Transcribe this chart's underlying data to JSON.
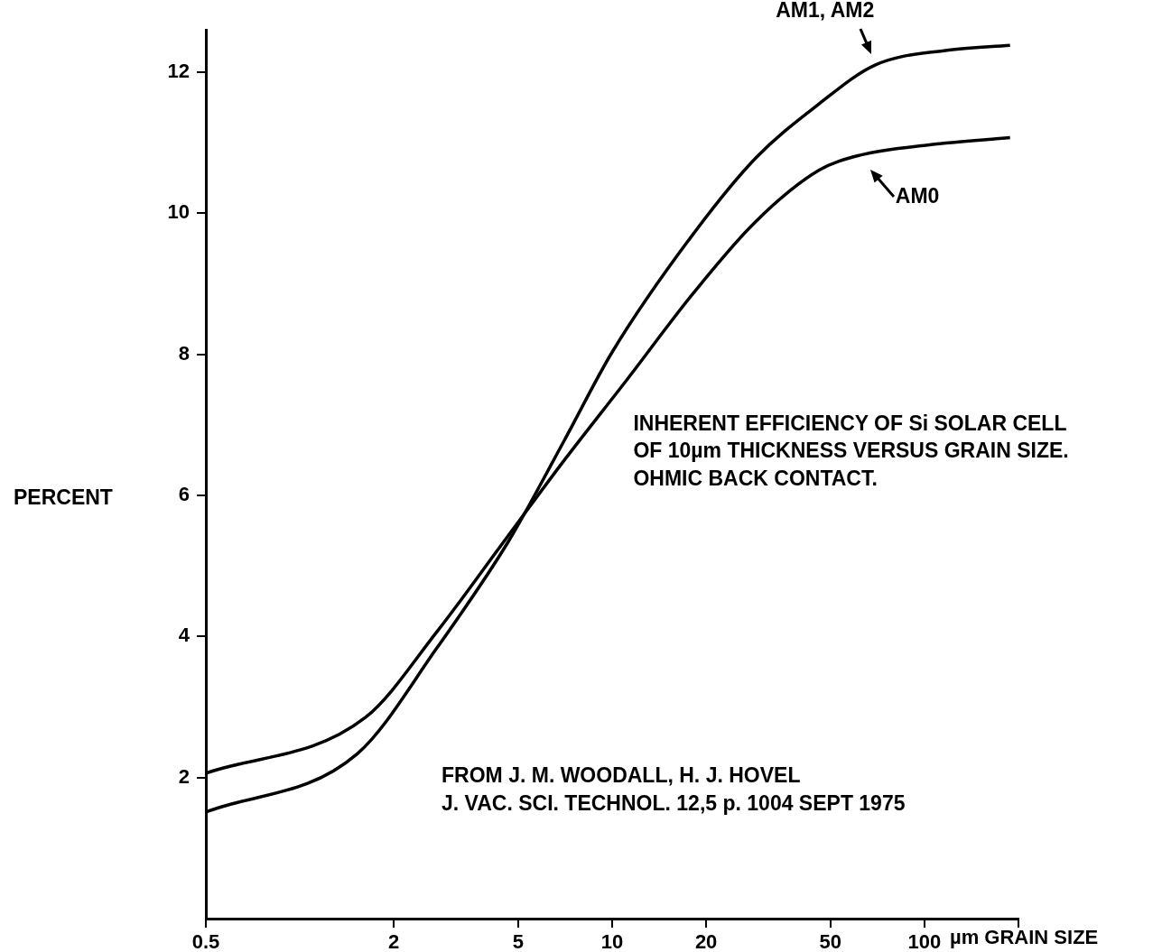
{
  "chart_data": {
    "type": "line",
    "xlabel": "µm GRAIN SIZE",
    "ylabel": "PERCENT",
    "annotations": [
      "INHERENT EFFICIENCY OF Si SOLAR CELL\nOF 10µm THICKNESS VERSUS GRAIN SIZE.\nOHMIC BACK CONTACT.",
      "FROM J. M. WOODALL, H. J. HOVEL\nJ. VAC. SCI. TECHNOL. 12,5 p. 1004 SEPT 1975"
    ],
    "log": "x",
    "xlim": [
      0.5,
      200
    ],
    "xticks": [
      0.5,
      2,
      5,
      10,
      20,
      50,
      100,
      {
        "value": 200,
        "label": null
      }
    ],
    "ylim": [
      0,
      12.6
    ],
    "yticks": [
      2,
      4,
      6,
      8,
      10,
      12
    ],
    "marker": "none",
    "line_style": "solid",
    "series": [
      {
        "name": "AM1, AM2",
        "color": "#000000",
        "x": [
          0.5,
          1.53,
          2.75,
          4.66,
          7.03,
          10,
          17.8,
          28.8,
          46,
          69.5,
          118,
          188
        ],
        "values": [
          1.51,
          2.34,
          3.84,
          5.35,
          6.78,
          8.03,
          9.65,
          10.78,
          11.55,
          12.1,
          12.31,
          12.38
        ]
      },
      {
        "name": "AM0",
        "color": "#000000",
        "x": [
          0.5,
          1.62,
          2.75,
          4.39,
          7.03,
          11.2,
          18,
          28.8,
          46,
          61.9,
          104,
          188
        ],
        "values": [
          2.06,
          2.85,
          4.07,
          5.28,
          6.5,
          7.65,
          8.84,
          9.88,
          10.61,
          10.82,
          10.97,
          11.07
        ]
      }
    ]
  }
}
